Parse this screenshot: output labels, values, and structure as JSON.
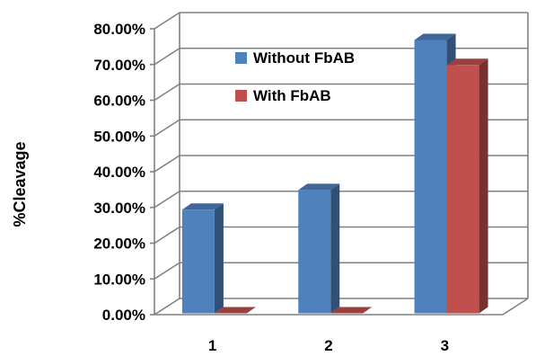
{
  "chart_data": {
    "type": "bar",
    "three_d": true,
    "categories": [
      "1",
      "2",
      "3"
    ],
    "series": [
      {
        "name": "Without FbAB",
        "color": "#4f81bd",
        "values": [
          0.29,
          0.345,
          0.765
        ]
      },
      {
        "name": "With FbAB",
        "color": "#c0504d",
        "values": [
          0.0,
          0.0,
          0.695
        ]
      }
    ],
    "ylabel": "%Cleavage",
    "xlabel": "",
    "ylim": [
      0,
      0.8
    ],
    "yticks": [
      "0.00%",
      "10.00%",
      "20.00%",
      "30.00%",
      "40.00%",
      "50.00%",
      "60.00%",
      "70.00%",
      "80.00%"
    ],
    "grid": true,
    "legend_position": "top-center"
  }
}
